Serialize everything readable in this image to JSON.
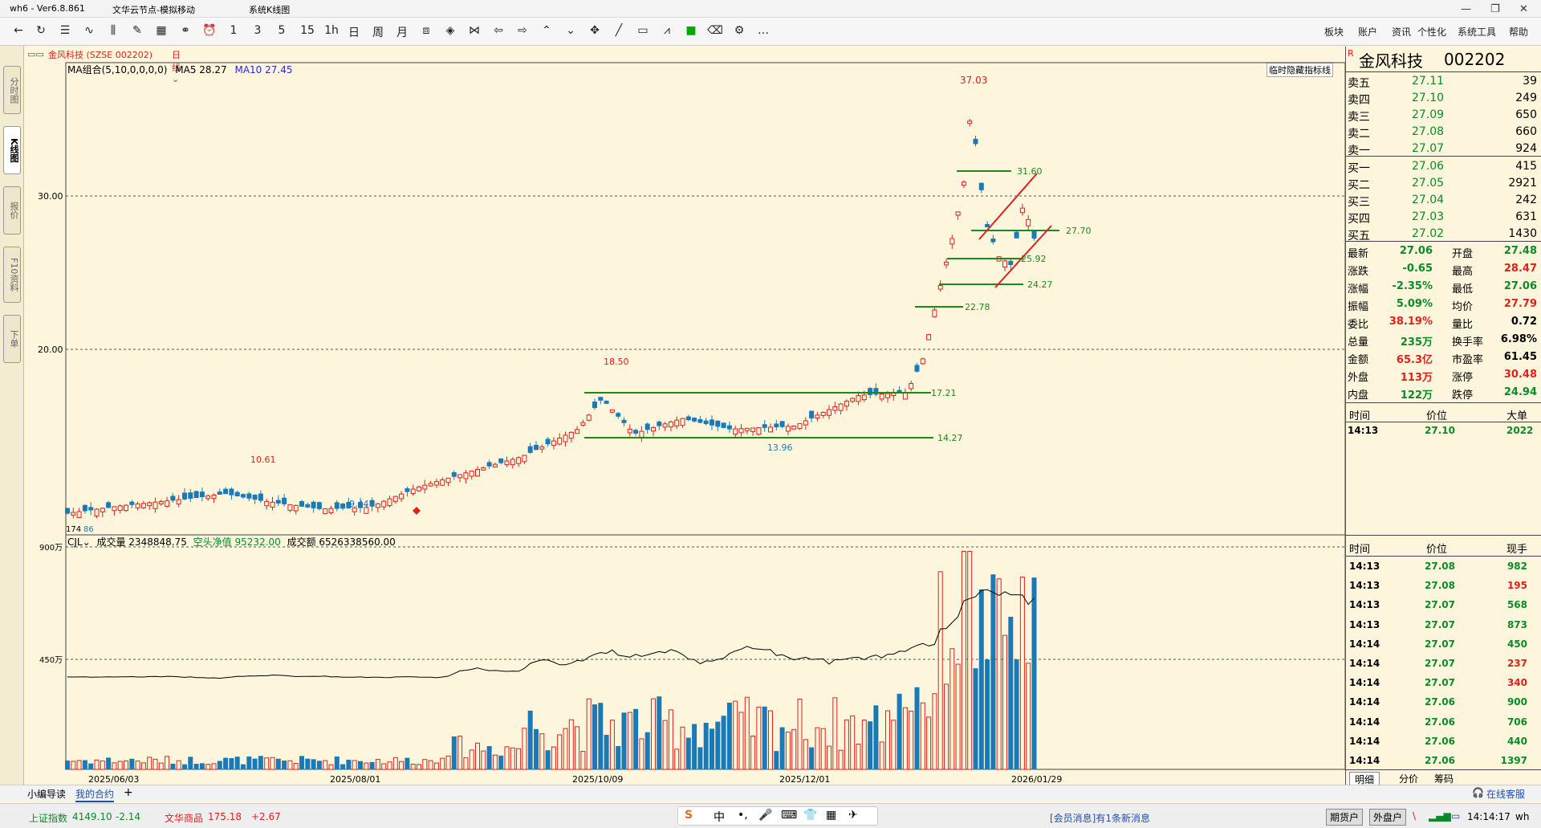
{
  "window": {
    "title": "wh6 - Ver6.8.861",
    "app_name": "文华云节点-模拟移动",
    "view_name": "系统K线图"
  },
  "toolbar": {
    "periods": [
      "1",
      "3",
      "5",
      "15",
      "1h",
      "日",
      "周",
      "月"
    ],
    "menus": [
      "板块",
      "账户",
      "资讯",
      "个性化",
      "系统工具",
      "帮助"
    ]
  },
  "left_tabs": [
    "分时图",
    "K线图",
    "报价",
    "F10资料",
    "下单"
  ],
  "chart_header": {
    "symbol": "金风科技 (SZSE 002202)",
    "period": "日线",
    "hide_btn": "临时隐藏指标线"
  },
  "ma": {
    "label": "MA组合(5,10,0,0,0,0)",
    "ma5": "MA5 28.27",
    "ma10": "MA10 27.45"
  },
  "vol_header": {
    "name": "CJL",
    "vol": "成交量 2348848.75",
    "net": "空头净值 95232.00",
    "amount": "成交额 6526338560.00"
  },
  "price_axis": {
    "labels": [
      "30.00",
      "20.00"
    ],
    "vol_labels": [
      "900万",
      "450万"
    ]
  },
  "x_axis": [
    "2025/06/03",
    "2025/08/01",
    "2025/10/09",
    "2025/12/01",
    "2026/01/29"
  ],
  "annotations": {
    "high": "37.03",
    "mid": "18.50",
    "low1": "13.96",
    "low2": "10.61",
    "low3": "9.44",
    "lvl1": "31.60",
    "lvl2": "27.70",
    "lvl3": "25.92",
    "lvl4": "24.27",
    "lvl5": "22.78",
    "lvl6": "17.21",
    "lvl7": "14.27",
    "left_mark": "174",
    "left_mark2": "86"
  },
  "quote": {
    "name": "金风科技",
    "code": "002202",
    "tag": "R",
    "asks": [
      {
        "l": "卖五",
        "p": "27.11",
        "v": "39"
      },
      {
        "l": "卖四",
        "p": "27.10",
        "v": "249"
      },
      {
        "l": "卖三",
        "p": "27.09",
        "v": "650"
      },
      {
        "l": "卖二",
        "p": "27.08",
        "v": "660"
      },
      {
        "l": "卖一",
        "p": "27.07",
        "v": "924"
      }
    ],
    "bids": [
      {
        "l": "买一",
        "p": "27.06",
        "v": "415"
      },
      {
        "l": "买二",
        "p": "27.05",
        "v": "2921"
      },
      {
        "l": "买三",
        "p": "27.04",
        "v": "242"
      },
      {
        "l": "买四",
        "p": "27.03",
        "v": "631"
      },
      {
        "l": "买五",
        "p": "27.02",
        "v": "1430"
      }
    ],
    "stats": [
      {
        "a": "最新",
        "av": "27.06",
        "b": "开盘",
        "bv": "27.48"
      },
      {
        "a": "涨跌",
        "av": "-0.65",
        "b": "最高",
        "bv": "28.47"
      },
      {
        "a": "涨幅",
        "av": "-2.35%",
        "b": "最低",
        "bv": "27.06"
      },
      {
        "a": "振幅",
        "av": "5.09%",
        "b": "均价",
        "bv": "27.79"
      },
      {
        "a": "委比",
        "av": "38.19%",
        "b": "量比",
        "bv": "0.72"
      },
      {
        "a": "总量",
        "av": "235万",
        "b": "换手率",
        "bv": "6.98%"
      },
      {
        "a": "金额",
        "av": "65.3亿",
        "b": "市盈率",
        "bv": "61.45"
      },
      {
        "a": "外盘",
        "av": "113万",
        "b": "涨停",
        "bv": "30.48"
      },
      {
        "a": "内盘",
        "av": "122万",
        "b": "跌停",
        "bv": "24.94"
      }
    ],
    "big_head": {
      "t": "时间",
      "p": "价位",
      "v": "大单"
    },
    "big_row": {
      "t": "14:13",
      "p": "27.10",
      "v": "2022"
    },
    "ticks_head": {
      "t": "时间",
      "p": "价位",
      "v": "现手"
    },
    "ticks": [
      {
        "t": "14:13",
        "p": "27.08",
        "v": "982"
      },
      {
        "t": "14:13",
        "p": "27.08",
        "v": "195"
      },
      {
        "t": "14:13",
        "p": "27.07",
        "v": "568"
      },
      {
        "t": "14:13",
        "p": "27.07",
        "v": "873"
      },
      {
        "t": "14:14",
        "p": "27.07",
        "v": "450"
      },
      {
        "t": "14:14",
        "p": "27.07",
        "v": "237"
      },
      {
        "t": "14:14",
        "p": "27.07",
        "v": "340"
      },
      {
        "t": "14:14",
        "p": "27.06",
        "v": "900"
      },
      {
        "t": "14:14",
        "p": "27.06",
        "v": "706"
      },
      {
        "t": "14:14",
        "p": "27.06",
        "v": "440"
      },
      {
        "t": "14:14",
        "p": "27.06",
        "v": "1397"
      }
    ],
    "tabs": [
      "明细",
      "分价",
      "筹码"
    ]
  },
  "bottom": {
    "tabs": [
      "小编导读",
      "我的合约"
    ],
    "plus": "+",
    "service": "在线客服"
  },
  "status": {
    "idx1_name": "上证指数",
    "idx1_val": "4149.10",
    "idx1_chg": "-2.14",
    "idx2_name": "文华商品",
    "idx2_val": "175.18",
    "idx2_chg": "+2.67",
    "news": "[会员消息]有1条新消息",
    "btn1": "期货户",
    "btn2": "外盘户",
    "time": "14:14:17",
    "user": "wh"
  }
}
